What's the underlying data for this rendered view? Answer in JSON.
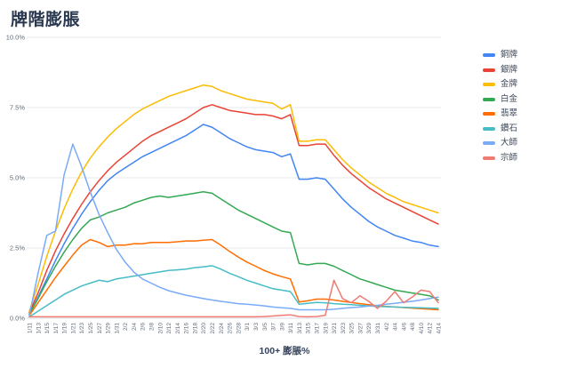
{
  "page": {
    "title": "牌階膨脹"
  },
  "chart_data": {
    "type": "line",
    "title": "牌階膨脹",
    "xlabel": "100+ 膨脹%",
    "ylabel": "",
    "ylim": [
      0,
      10
    ],
    "grid": true,
    "legend_position": "right",
    "y_ticks": [
      "10.0%",
      "7.5%",
      "5.0%",
      "2.5%",
      "0.0%"
    ],
    "y_tick_values": [
      10,
      7.5,
      5,
      2.5,
      0
    ],
    "categories": [
      "1/11",
      "1/13",
      "1/15",
      "1/17",
      "1/19",
      "1/21",
      "1/23",
      "1/25",
      "1/27",
      "1/29",
      "1/31",
      "2/2",
      "2/4",
      "2/6",
      "2/8",
      "2/10",
      "2/12",
      "2/14",
      "2/16",
      "2/18",
      "2/20",
      "2/22",
      "2/24",
      "2/26",
      "2/28",
      "3/1",
      "3/3",
      "3/5",
      "3/7",
      "3/9",
      "3/11",
      "3/13",
      "3/15",
      "3/17",
      "3/19",
      "3/21",
      "3/23",
      "3/25",
      "3/27",
      "3/29",
      "3/31",
      "4/2",
      "4/4",
      "4/6",
      "4/8",
      "4/10",
      "4/12",
      "4/14"
    ],
    "series": [
      {
        "id": "bronze",
        "name": "銅牌",
        "color": "#4285F4",
        "values": [
          0.15,
          0.75,
          1.4,
          2.05,
          2.65,
          3.2,
          3.7,
          4.15,
          4.55,
          4.9,
          5.15,
          5.35,
          5.55,
          5.75,
          5.9,
          6.05,
          6.2,
          6.35,
          6.5,
          6.7,
          6.9,
          6.8,
          6.6,
          6.4,
          6.25,
          6.1,
          6.0,
          5.95,
          5.9,
          5.75,
          5.85,
          4.95,
          4.95,
          5.0,
          4.95,
          4.6,
          4.25,
          3.95,
          3.7,
          3.45,
          3.25,
          3.1,
          2.95,
          2.85,
          2.75,
          2.7,
          2.6,
          2.55
        ]
      },
      {
        "id": "silver",
        "name": "銀牌",
        "color": "#EA4335",
        "values": [
          0.2,
          0.9,
          1.7,
          2.4,
          3.0,
          3.55,
          4.05,
          4.5,
          4.9,
          5.25,
          5.55,
          5.8,
          6.05,
          6.3,
          6.5,
          6.65,
          6.8,
          6.95,
          7.1,
          7.3,
          7.5,
          7.6,
          7.5,
          7.4,
          7.35,
          7.3,
          7.25,
          7.25,
          7.2,
          7.1,
          7.25,
          6.15,
          6.15,
          6.2,
          6.2,
          5.8,
          5.45,
          5.15,
          4.9,
          4.65,
          4.45,
          4.25,
          4.1,
          3.95,
          3.8,
          3.65,
          3.5,
          3.35
        ]
      },
      {
        "id": "gold",
        "name": "金牌",
        "color": "#FBBC04",
        "values": [
          0.25,
          1.2,
          2.2,
          3.1,
          3.9,
          4.6,
          5.2,
          5.7,
          6.1,
          6.45,
          6.75,
          7.0,
          7.25,
          7.45,
          7.6,
          7.75,
          7.9,
          8.0,
          8.1,
          8.2,
          8.3,
          8.25,
          8.1,
          8.0,
          7.9,
          7.8,
          7.75,
          7.7,
          7.65,
          7.45,
          7.6,
          6.3,
          6.3,
          6.35,
          6.35,
          6.0,
          5.65,
          5.35,
          5.1,
          4.85,
          4.65,
          4.45,
          4.3,
          4.15,
          4.05,
          3.95,
          3.85,
          3.75
        ]
      },
      {
        "id": "platinum",
        "name": "白金",
        "color": "#34A853",
        "values": [
          0.15,
          0.7,
          1.3,
          1.85,
          2.35,
          2.8,
          3.2,
          3.5,
          3.6,
          3.75,
          3.85,
          3.95,
          4.1,
          4.2,
          4.3,
          4.35,
          4.3,
          4.35,
          4.4,
          4.45,
          4.5,
          4.45,
          4.25,
          4.05,
          3.85,
          3.7,
          3.55,
          3.4,
          3.25,
          3.1,
          3.05,
          1.95,
          1.9,
          1.95,
          1.95,
          1.85,
          1.7,
          1.55,
          1.4,
          1.3,
          1.2,
          1.1,
          1.0,
          0.95,
          0.9,
          0.85,
          0.8,
          0.65
        ]
      },
      {
        "id": "emerald",
        "name": "翡翠",
        "color": "#FF6D01",
        "values": [
          0.1,
          0.55,
          1.0,
          1.45,
          1.85,
          2.25,
          2.6,
          2.8,
          2.7,
          2.55,
          2.6,
          2.6,
          2.65,
          2.65,
          2.7,
          2.7,
          2.7,
          2.72,
          2.75,
          2.75,
          2.78,
          2.8,
          2.6,
          2.38,
          2.18,
          2.0,
          1.85,
          1.7,
          1.58,
          1.48,
          1.4,
          0.58,
          0.62,
          0.68,
          0.68,
          0.65,
          0.6,
          0.56,
          0.52,
          0.48,
          0.45,
          0.42,
          0.4,
          0.38,
          0.36,
          0.34,
          0.32,
          0.3
        ]
      },
      {
        "id": "diamond",
        "name": "鑽石",
        "color": "#46BDC6",
        "values": [
          0.05,
          0.25,
          0.45,
          0.65,
          0.85,
          1.0,
          1.15,
          1.25,
          1.35,
          1.3,
          1.4,
          1.45,
          1.5,
          1.55,
          1.6,
          1.65,
          1.7,
          1.72,
          1.75,
          1.8,
          1.83,
          1.87,
          1.75,
          1.6,
          1.48,
          1.35,
          1.25,
          1.15,
          1.05,
          1.0,
          0.95,
          0.5,
          0.53,
          0.56,
          0.55,
          0.52,
          0.5,
          0.48,
          0.46,
          0.44,
          0.42,
          0.41,
          0.4,
          0.39,
          0.38,
          0.37,
          0.36,
          0.35
        ]
      },
      {
        "id": "master",
        "name": "大師",
        "color": "#7BAAF7",
        "values": [
          0.1,
          1.6,
          2.95,
          3.1,
          5.1,
          6.2,
          5.4,
          4.5,
          3.7,
          3.05,
          2.45,
          2.0,
          1.65,
          1.4,
          1.25,
          1.1,
          0.98,
          0.9,
          0.82,
          0.76,
          0.7,
          0.65,
          0.6,
          0.56,
          0.52,
          0.5,
          0.47,
          0.44,
          0.4,
          0.37,
          0.35,
          0.3,
          0.3,
          0.3,
          0.3,
          0.32,
          0.35,
          0.38,
          0.4,
          0.43,
          0.46,
          0.5,
          0.53,
          0.57,
          0.6,
          0.65,
          0.7,
          0.75
        ]
      },
      {
        "id": "grandmaster",
        "name": "宗師",
        "color": "#F07B72",
        "values": [
          0.05,
          0.05,
          0.05,
          0.05,
          0.05,
          0.05,
          0.05,
          0.05,
          0.05,
          0.05,
          0.05,
          0.05,
          0.05,
          0.05,
          0.05,
          0.05,
          0.05,
          0.05,
          0.05,
          0.05,
          0.05,
          0.05,
          0.05,
          0.05,
          0.05,
          0.05,
          0.05,
          0.06,
          0.08,
          0.1,
          0.12,
          0.06,
          0.05,
          0.06,
          0.1,
          1.35,
          0.7,
          0.55,
          0.8,
          0.6,
          0.35,
          0.6,
          0.95,
          0.55,
          0.75,
          1.0,
          0.95,
          0.55
        ]
      }
    ]
  }
}
